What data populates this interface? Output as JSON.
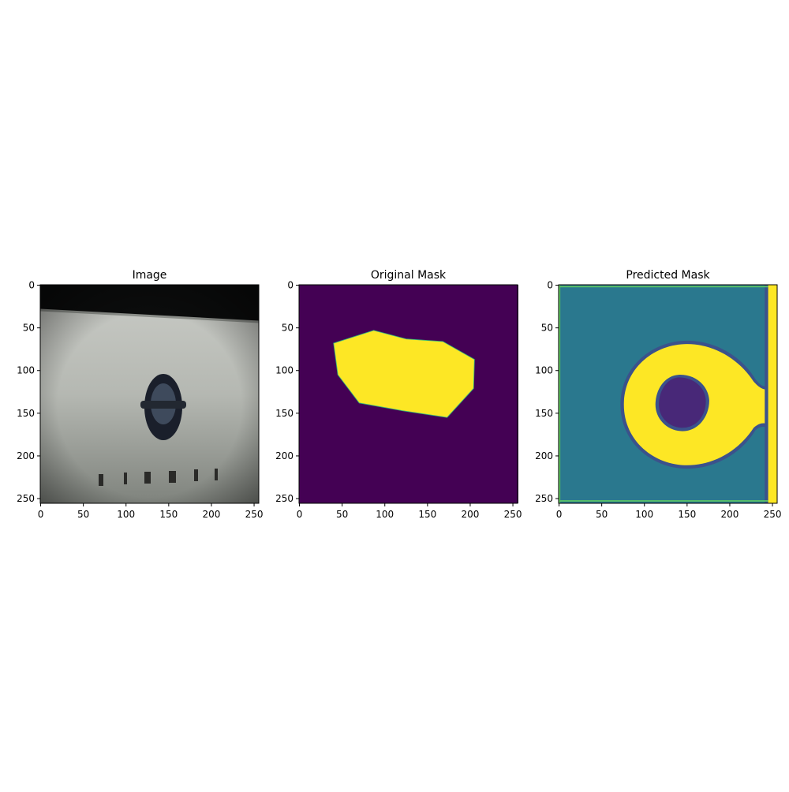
{
  "chart_data": [
    {
      "type": "image",
      "title": "Image",
      "xlim": [
        -0.5,
        255.5
      ],
      "ylim": [
        255.5,
        -0.5
      ],
      "xticks": [
        0,
        50,
        100,
        150,
        200,
        250
      ],
      "yticks": [
        0,
        50,
        100,
        150,
        200,
        250
      ]
    },
    {
      "type": "image",
      "title": "Original Mask",
      "xlim": [
        -0.5,
        255.5
      ],
      "ylim": [
        255.5,
        -0.5
      ],
      "xticks": [
        0,
        50,
        100,
        150,
        200,
        250
      ],
      "yticks": [
        0,
        50,
        100,
        150,
        200,
        250
      ]
    },
    {
      "type": "image",
      "title": "Predicted Mask",
      "xlim": [
        -0.5,
        255.5
      ],
      "ylim": [
        255.5,
        -0.5
      ],
      "xticks": [
        0,
        50,
        100,
        150,
        200,
        250
      ],
      "yticks": [
        0,
        50,
        100,
        150,
        200,
        250
      ]
    }
  ]
}
